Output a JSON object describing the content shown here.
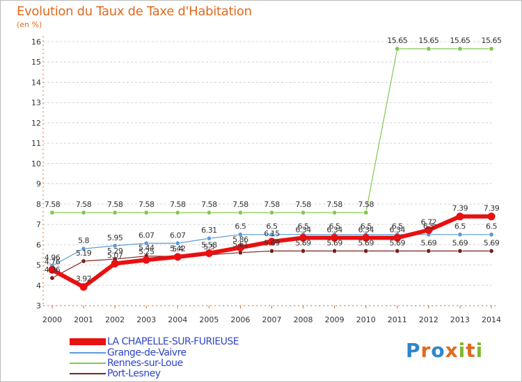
{
  "title": "Evolution du Taux de Taxe d'Habitation",
  "unit": "(en %)",
  "logo": {
    "text": "Proxiti",
    "letter_colors": [
      "#2f86c8",
      "#e06a1f",
      "#2f86c8",
      "#e06a1f",
      "#80b830",
      "#e06a1f",
      "#80b830"
    ]
  },
  "chart_data": {
    "type": "line",
    "x": [
      2000,
      2001,
      2002,
      2003,
      2004,
      2005,
      2006,
      2007,
      2008,
      2009,
      2010,
      2011,
      2012,
      2013,
      2014
    ],
    "ylim": [
      3,
      16
    ],
    "yticks": [
      3,
      4,
      5,
      6,
      7,
      8,
      9,
      10,
      11,
      12,
      13,
      14,
      15,
      16
    ],
    "grid": true,
    "grid_style": "dashed, horizontal",
    "legend_position": "bottom-left",
    "series": [
      {
        "name": "Rennes-sur-Loue",
        "color": "#80c850",
        "width": 1.2,
        "point": 3.2,
        "values": [
          7.58,
          7.58,
          7.58,
          7.58,
          7.58,
          7.58,
          7.58,
          7.58,
          7.58,
          7.58,
          7.58,
          15.65,
          15.65,
          15.65,
          15.65
        ],
        "labels": [
          "7.58",
          "7.58",
          "7.58",
          "7.58",
          "7.58",
          "7.58",
          "7.58",
          "7.58",
          "7.58",
          "7.58",
          "7.58",
          "15.65",
          "15.65",
          "15.65",
          "15.65"
        ]
      },
      {
        "name": "Grange-de-Vaivre",
        "color": "#5c9ad8",
        "width": 1.2,
        "point": 3.2,
        "values": [
          4.96,
          5.8,
          5.95,
          6.07,
          6.07,
          6.31,
          6.5,
          6.5,
          6.5,
          6.5,
          6.5,
          6.5,
          6.5,
          6.5,
          6.5
        ],
        "labels": [
          "4.96",
          "5.8",
          "5.95",
          "6.07",
          "6.07",
          "6.31",
          "6.5",
          "6.5",
          "6.5",
          "6.5",
          "6.5",
          "6.5",
          "6.5",
          "6.5",
          "6.5"
        ]
      },
      {
        "name": "Port-Lesney",
        "color": "#7a2020",
        "width": 1.2,
        "point": 3.2,
        "values": [
          4.36,
          5.19,
          5.29,
          5.44,
          5.42,
          5.5,
          5.61,
          5.69,
          5.69,
          5.69,
          5.69,
          5.69,
          5.69,
          5.69,
          5.69
        ],
        "labels": [
          "4.36",
          "5.19",
          "5.29",
          "5.44",
          "5.42",
          "5.5",
          "5.61",
          "5.69",
          "5.69",
          "5.69",
          "5.69",
          "5.69",
          "5.69",
          "5.69",
          "5.69"
        ]
      },
      {
        "name": "LA CHAPELLE-SUR-FURIEUSE",
        "color": "#e81010",
        "width": 6,
        "point": 5.5,
        "values": [
          4.76,
          3.92,
          5.07,
          5.25,
          5.4,
          5.58,
          5.86,
          6.15,
          6.34,
          6.34,
          6.34,
          6.34,
          6.72,
          7.39,
          7.39
        ],
        "labels": [
          "4.76",
          "3.92",
          "5.07",
          "5.25",
          "5.4",
          "5.58",
          "5.86",
          "6.15",
          "6.34",
          "6.34",
          "6.34",
          "6.34",
          "6.72",
          "7.39",
          "7.39"
        ]
      }
    ],
    "legend": [
      "LA CHAPELLE-SUR-FURIEUSE",
      "Grange-de-Vaivre",
      "Rennes-sur-Loue",
      "Port-Lesney"
    ]
  }
}
